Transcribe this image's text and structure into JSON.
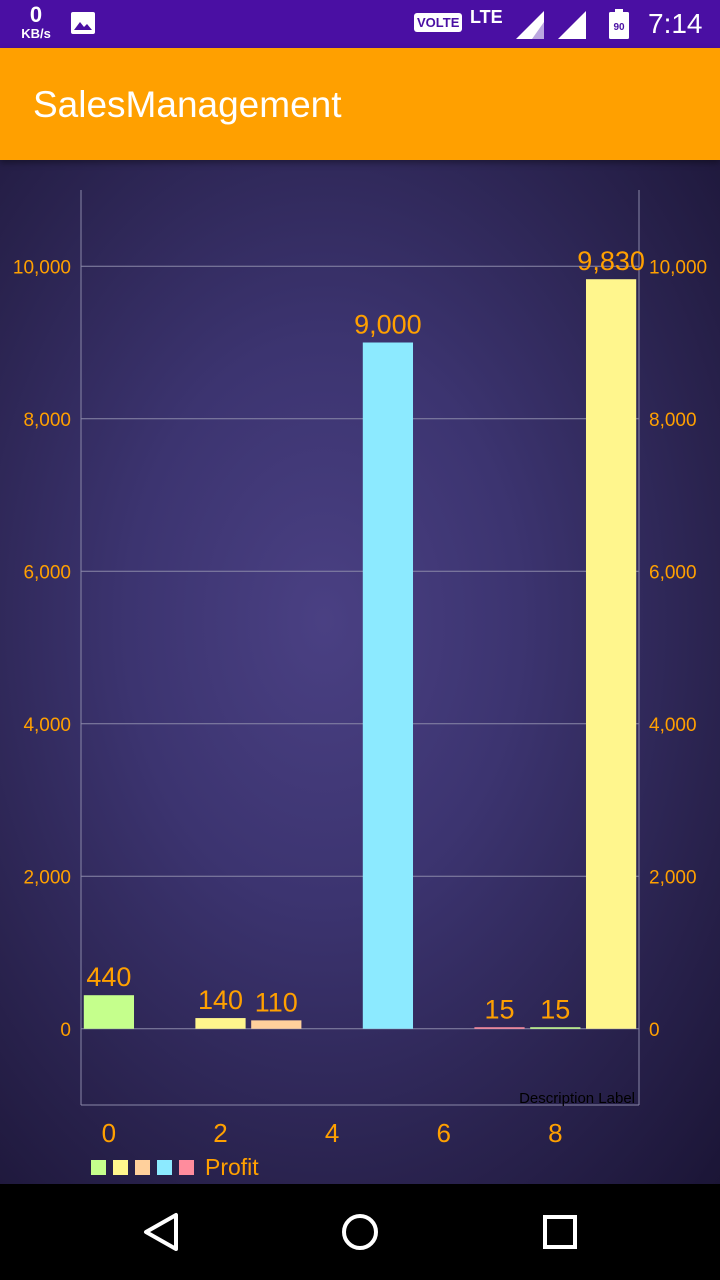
{
  "status_bar": {
    "net_speed": "0",
    "net_unit": "KB/s",
    "volte": "VOLTE",
    "network": "LTE",
    "battery": "90",
    "time": "7:14",
    "icons": [
      "gallery-icon",
      "signal-icon",
      "signal-icon",
      "battery-icon"
    ]
  },
  "app_bar": {
    "title": "SalesManagement"
  },
  "colors": {
    "status_bar": "#4a0fa3",
    "app_bar": "#ffa000",
    "chart_text": "#ffa000",
    "grid": "#8a88a8"
  },
  "chart_data": {
    "type": "bar",
    "x": [
      0,
      2,
      3,
      5,
      7,
      8,
      9
    ],
    "values": [
      440,
      140,
      110,
      9000,
      15,
      15,
      9830
    ],
    "value_labels": [
      "440",
      "140",
      "110",
      "9,000",
      "15",
      "15",
      "9,830"
    ],
    "bar_colors": [
      "#c5ff8c",
      "#fff68d",
      "#ffd09c",
      "#8ceaff",
      "#ff8c9d",
      "#c5ff8c",
      "#fff68d"
    ],
    "x_range": [
      -0.5,
      9.5
    ],
    "x_ticks": [
      "0",
      "2",
      "4",
      "6",
      "8"
    ],
    "x_tick_values": [
      0,
      2,
      4,
      6,
      8
    ],
    "ylim": [
      -1000,
      11000
    ],
    "y_ticks_left": [
      "0",
      "2,000",
      "4,000",
      "6,000",
      "8,000",
      "10,000"
    ],
    "y_ticks_right": [
      "0",
      "2,000",
      "4,000",
      "6,000",
      "8,000",
      "10,000"
    ],
    "y_tick_values": [
      0,
      2000,
      4000,
      6000,
      8000,
      10000
    ],
    "grid": true,
    "legend": {
      "placement": "bottom-left",
      "label": "Profit",
      "colors": [
        "#c5ff8c",
        "#fff68d",
        "#ffd09c",
        "#8ceaff",
        "#ff8c9d"
      ]
    },
    "description": "Description Label"
  },
  "nav_bar": {
    "buttons": [
      "back-icon",
      "home-icon",
      "recents-icon"
    ]
  }
}
